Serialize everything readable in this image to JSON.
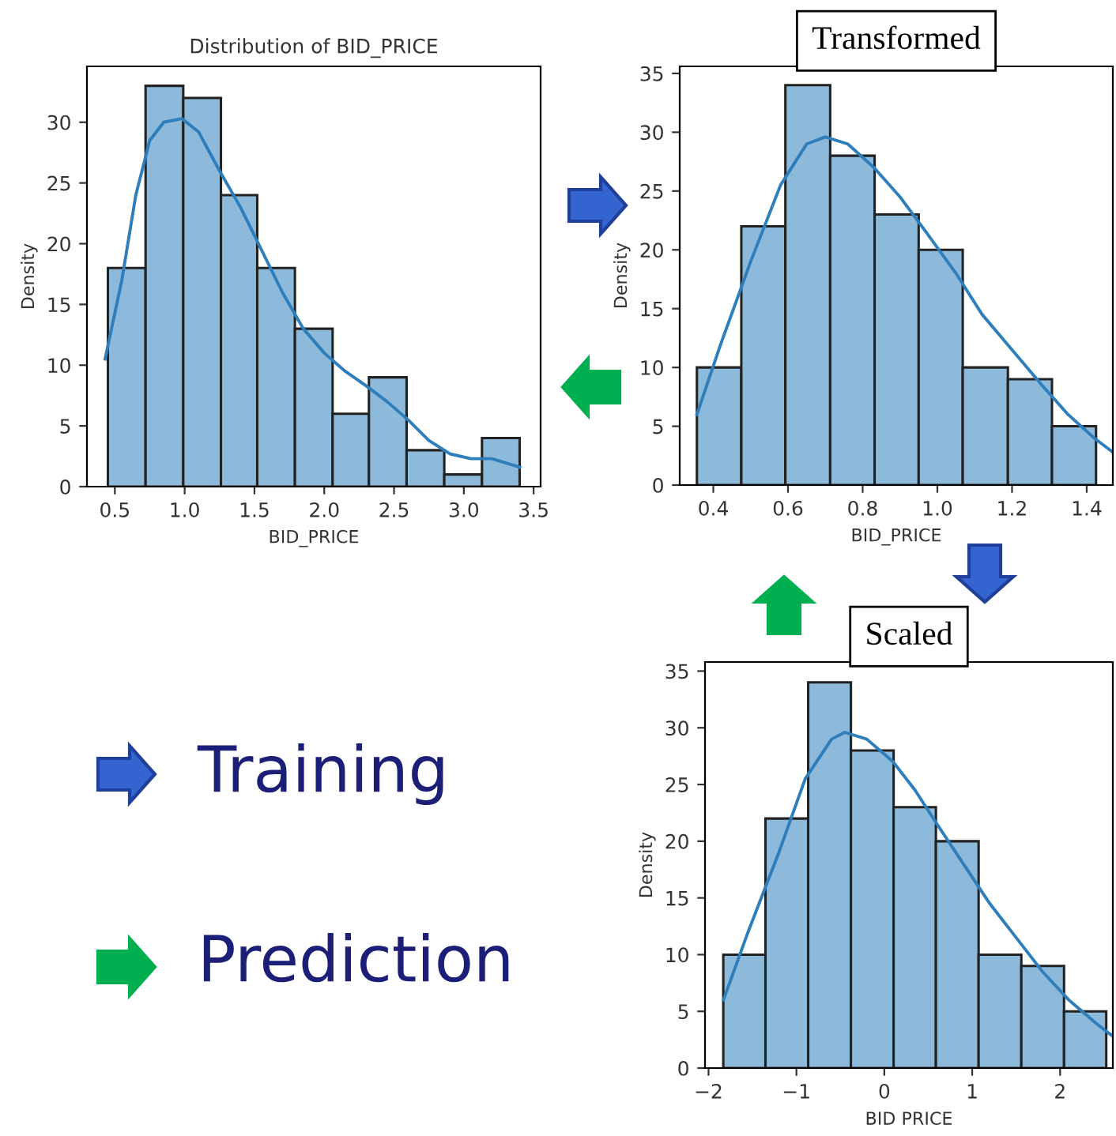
{
  "chart_data": [
    {
      "type": "histogram",
      "title": "Distribution of BID_PRICE",
      "xlabel": "BID_PRICE",
      "ylabel": "Density",
      "xlim": [
        0.3,
        3.55
      ],
      "ylim": [
        0,
        34.6
      ],
      "xticks": [
        0.5,
        {
          "value": 1,
          "label": "1.0"
        },
        1.5,
        {
          "value": 2,
          "label": "2.0"
        },
        2.5,
        {
          "value": 3,
          "label": "3.0"
        },
        3.5
      ],
      "yticks": [
        0,
        5,
        10,
        15,
        20,
        25,
        30
      ],
      "grid": false,
      "series": [
        {
          "type": "histogram",
          "color": "#8db9da",
          "bins": [
            0.45,
            0.72,
            0.99,
            1.26,
            1.52,
            1.79,
            2.06,
            2.32,
            2.59,
            2.86,
            3.13,
            3.4
          ],
          "values": [
            18,
            33,
            32,
            24,
            18,
            13,
            6,
            9,
            3,
            1,
            4
          ]
        },
        {
          "type": "line",
          "color": "#2f7ebc",
          "x": [
            0.43,
            0.55,
            0.65,
            0.75,
            0.85,
            0.98,
            1.1,
            1.25,
            1.4,
            1.55,
            1.7,
            1.85,
            2.0,
            2.15,
            2.3,
            2.45,
            2.6,
            2.75,
            2.9,
            3.05,
            3.2,
            3.4
          ],
          "values": [
            10.5,
            17,
            24,
            28.5,
            30,
            30.3,
            29.2,
            26,
            23,
            19.5,
            16,
            13,
            11,
            9.5,
            8.3,
            7,
            5.5,
            3.8,
            2.7,
            2.3,
            2.3,
            1.6
          ]
        }
      ]
    },
    {
      "type": "histogram",
      "title": "Transformed",
      "xlabel": "BID_PRICE",
      "ylabel": "Density",
      "xlim": [
        0.31,
        1.47
      ],
      "ylim": [
        0,
        35.6
      ],
      "xticks": [
        0.4,
        0.6,
        0.8,
        {
          "value": 1,
          "label": "1.0"
        },
        1.2,
        1.4
      ],
      "yticks": [
        0,
        5,
        10,
        15,
        20,
        25,
        30,
        35
      ],
      "grid": false,
      "series": [
        {
          "type": "histogram",
          "color": "#8db9da",
          "bins": [
            0.356,
            0.475,
            0.593,
            0.713,
            0.832,
            0.95,
            1.068,
            1.189,
            1.307,
            1.425
          ],
          "values": [
            10,
            22,
            34,
            28,
            23,
            20,
            10,
            9,
            5
          ]
        },
        {
          "type": "line",
          "color": "#2f7ebc",
          "x": [
            0.356,
            0.42,
            0.5,
            0.58,
            0.65,
            0.7,
            0.76,
            0.83,
            0.9,
            0.97,
            1.05,
            1.12,
            1.2,
            1.28,
            1.35,
            1.42,
            1.47
          ],
          "values": [
            6,
            12,
            19,
            25.5,
            29,
            29.6,
            29,
            27,
            24.5,
            21.5,
            18,
            14.5,
            11.5,
            8.5,
            6,
            4,
            2.8
          ]
        }
      ]
    },
    {
      "type": "histogram",
      "title": "Scaled",
      "xlabel": "BID PRICE",
      "ylabel": "Density",
      "xlim": [
        -2.04,
        2.6
      ],
      "ylim": [
        0,
        35.8
      ],
      "xticks": [
        {
          "value": -2,
          "label": "−2"
        },
        {
          "value": -1,
          "label": "−1"
        },
        0,
        1,
        2
      ],
      "yticks": [
        0,
        5,
        10,
        15,
        20,
        25,
        30,
        35
      ],
      "grid": false,
      "series": [
        {
          "type": "histogram",
          "color": "#8db9da",
          "bins": [
            -1.832,
            -1.352,
            -0.866,
            -0.38,
            0.106,
            0.587,
            1.073,
            1.559,
            2.045,
            2.525
          ],
          "values": [
            10,
            22,
            34,
            28,
            23,
            20,
            10,
            9,
            5
          ]
        },
        {
          "type": "line",
          "color": "#2f7ebc",
          "x": [
            -1.83,
            -1.55,
            -1.2,
            -0.9,
            -0.6,
            -0.45,
            -0.2,
            0.1,
            0.35,
            0.6,
            0.9,
            1.2,
            1.5,
            1.8,
            2.1,
            2.4,
            2.6
          ],
          "values": [
            6,
            12,
            19,
            25.5,
            29,
            29.6,
            29,
            27,
            24.5,
            21.5,
            18,
            14.5,
            11.5,
            8.5,
            6,
            4,
            2.8
          ]
        }
      ]
    },
    {
      "type": "other",
      "annotations": [
        "Training",
        "Prediction"
      ]
    }
  ]
}
